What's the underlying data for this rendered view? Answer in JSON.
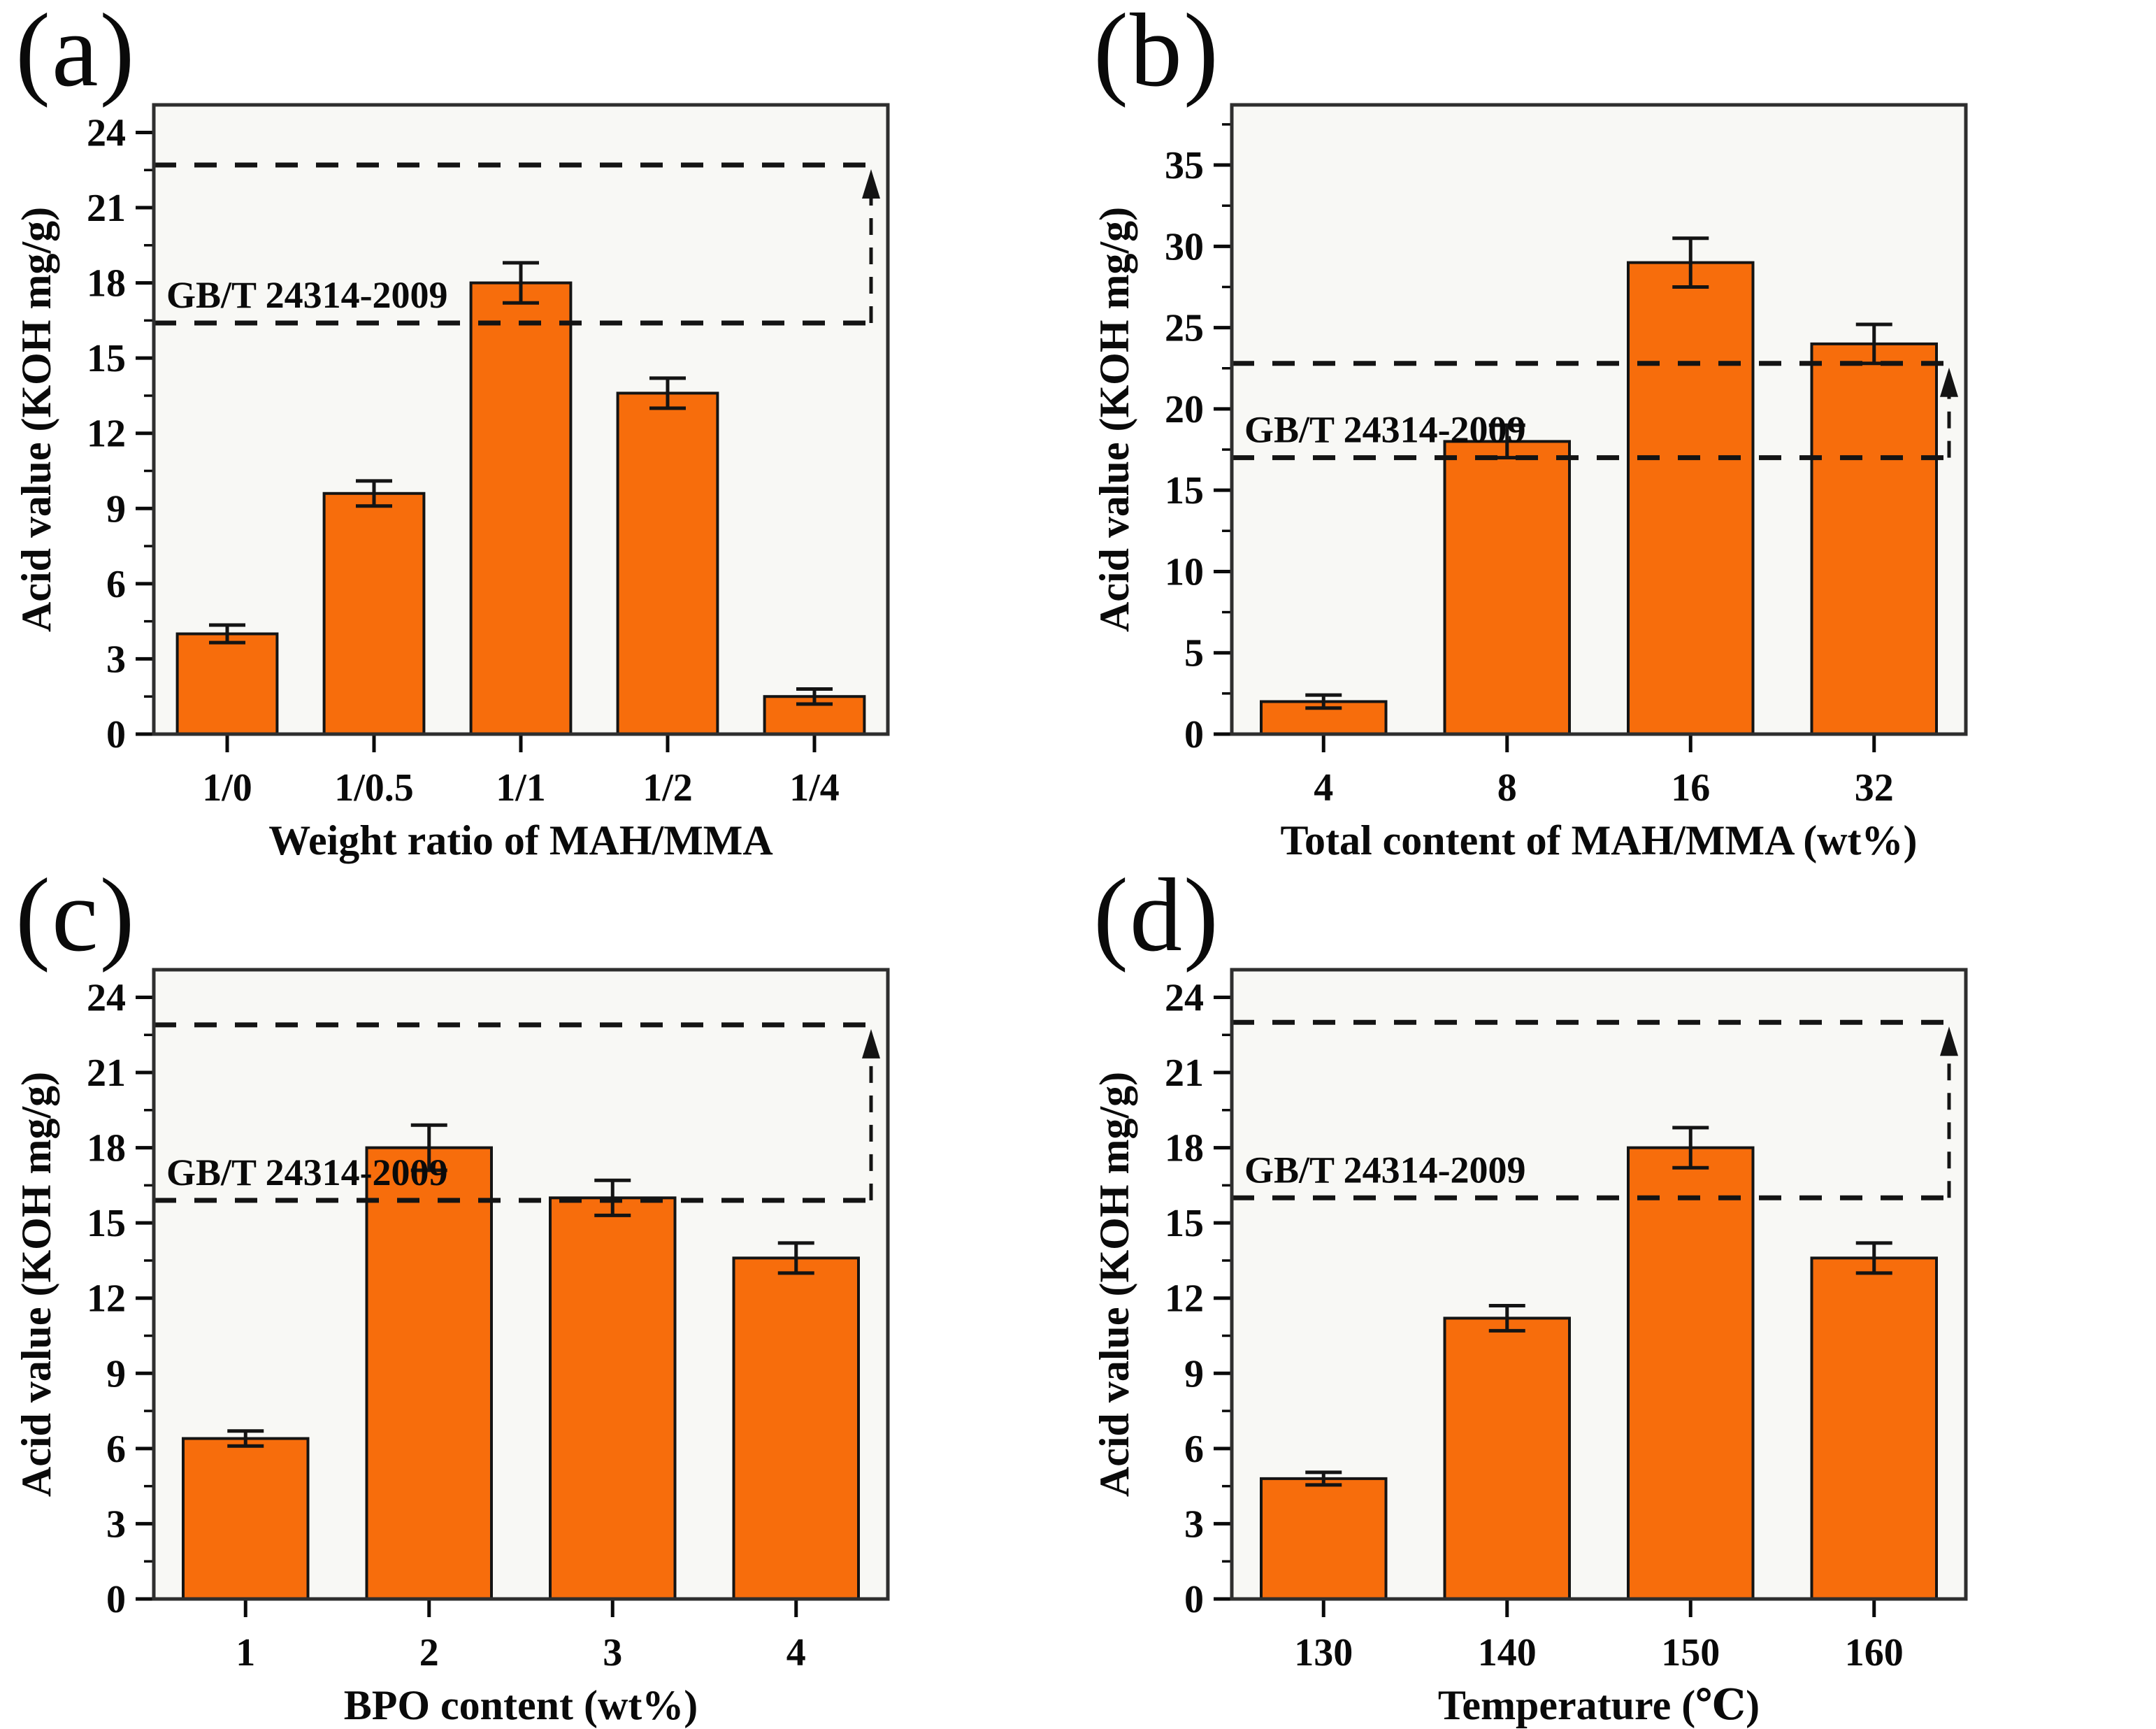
{
  "figure": {
    "description_visible_text_only": "",
    "ref_line_label": "GB/T 24314-2009"
  },
  "colors": {
    "bar_fill": "#f76d0c",
    "bar_edge": "#141414",
    "frame": "#2e2e2e",
    "plot_bg": "#f8f8f5",
    "dash_line": "#141414",
    "text": "#0a0a0a",
    "error_bar": "#141414",
    "page_bg": "#ffffff"
  },
  "chart_data": [
    {
      "id": "a",
      "panel_label": "(a)",
      "type": "bar",
      "title": "",
      "xlabel": "Weight ratio of MAH/MMA",
      "ylabel": "Acid value (KOH mg/g)",
      "categories": [
        "1/0",
        "1/0.5",
        "1/1",
        "1/2",
        "1/4"
      ],
      "values": [
        4.0,
        9.6,
        18.0,
        13.6,
        1.5
      ],
      "errors": [
        0.35,
        0.5,
        0.8,
        0.6,
        0.3
      ],
      "ylim": [
        0,
        25.1
      ],
      "yticks": [
        0,
        3,
        6,
        9,
        12,
        15,
        18,
        21,
        24
      ],
      "minor_step": 1.5,
      "grid": "off",
      "ref_label": "GB/T 24314-2009",
      "ref_lower": 16.4,
      "ref_upper": 22.7
    },
    {
      "id": "b",
      "panel_label": "(b)",
      "type": "bar",
      "title": "",
      "xlabel": "Total content of MAH/MMA (wt%)",
      "ylabel": "Acid value (KOH mg/g)",
      "categories": [
        "4",
        "8",
        "16",
        "32"
      ],
      "values": [
        2.0,
        18.0,
        29.0,
        24.0
      ],
      "errors": [
        0.4,
        1.0,
        1.5,
        1.2
      ],
      "ylim": [
        0,
        38.7
      ],
      "yticks": [
        0,
        5,
        10,
        15,
        20,
        25,
        30,
        35
      ],
      "minor_step": 2.5,
      "grid": "off",
      "ref_label": "GB/T 24314-2009",
      "ref_lower": 17.0,
      "ref_upper": 22.8
    },
    {
      "id": "c",
      "panel_label": "(c)",
      "type": "bar",
      "title": "",
      "xlabel": "BPO content (wt%)",
      "ylabel": "Acid value (KOH mg/g)",
      "categories": [
        "1",
        "2",
        "3",
        "4"
      ],
      "values": [
        6.4,
        18.0,
        16.0,
        13.6
      ],
      "errors": [
        0.3,
        0.9,
        0.7,
        0.6
      ],
      "ylim": [
        0,
        25.1
      ],
      "yticks": [
        0,
        3,
        6,
        9,
        12,
        15,
        18,
        21,
        24
      ],
      "minor_step": 1.5,
      "grid": "off",
      "ref_label": "GB/T 24314-2009",
      "ref_lower": 15.9,
      "ref_upper": 22.9
    },
    {
      "id": "d",
      "panel_label": "(d)",
      "type": "bar",
      "title": "",
      "xlabel": "Temperature (℃)",
      "ylabel": "Acid value (KOH mg/g)",
      "categories": [
        "130",
        "140",
        "150",
        "160"
      ],
      "values": [
        4.8,
        11.2,
        18.0,
        13.6
      ],
      "errors": [
        0.25,
        0.5,
        0.8,
        0.6
      ],
      "ylim": [
        0,
        25.1
      ],
      "yticks": [
        0,
        3,
        6,
        9,
        12,
        15,
        18,
        21,
        24
      ],
      "minor_step": 1.5,
      "grid": "off",
      "ref_label": "GB/T 24314-2009",
      "ref_lower": 16.0,
      "ref_upper": 23.0
    }
  ]
}
